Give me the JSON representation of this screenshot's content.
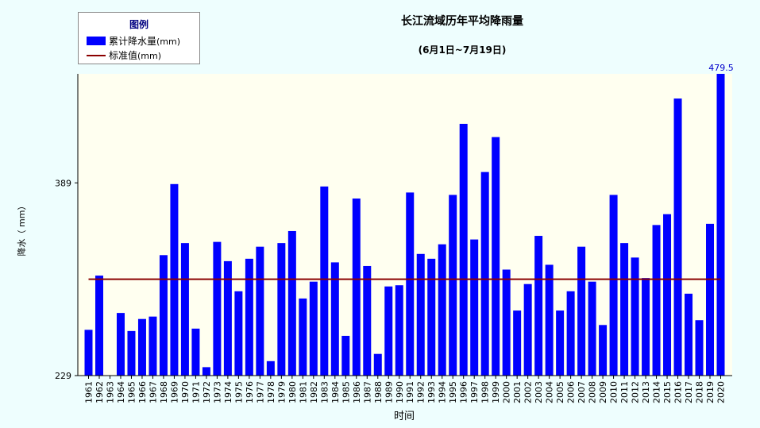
{
  "chart_data": {
    "type": "bar",
    "title": "长江流域历年平均降雨量",
    "subtitle": "(6月1日~7月19日)",
    "xlabel": "时间",
    "ylabel": "降水（ mm）",
    "ylim": [
      229,
      479.5
    ],
    "yticks": [
      229,
      389
    ],
    "max_label": "479.5",
    "categories": [
      "1961",
      "1962",
      "1963",
      "1964",
      "1965",
      "1966",
      "1967",
      "1968",
      "1969",
      "1970",
      "1971",
      "1972",
      "1973",
      "1974",
      "1975",
      "1976",
      "1977",
      "1978",
      "1979",
      "1980",
      "1981",
      "1982",
      "1983",
      "1984",
      "1985",
      "1986",
      "1987",
      "1988",
      "1989",
      "1990",
      "1991",
      "1992",
      "1993",
      "1994",
      "1995",
      "1996",
      "1997",
      "1998",
      "1999",
      "2000",
      "2001",
      "2002",
      "2003",
      "2004",
      "2005",
      "2006",
      "2007",
      "2008",
      "2009",
      "2010",
      "2011",
      "2012",
      "2013",
      "2014",
      "2015",
      "2016",
      "2017",
      "2018",
      "2019",
      "2020"
    ],
    "series": [
      {
        "name": "累计降水量(mm)",
        "values": [
          267,
          312,
          229,
          281,
          266,
          276,
          278,
          329,
          388,
          339,
          268,
          236,
          340,
          324,
          299,
          326,
          336,
          241,
          339,
          349,
          293,
          307,
          386,
          323,
          262,
          376,
          320,
          247,
          303,
          304,
          381,
          330,
          326,
          338,
          379,
          438,
          342,
          398,
          427,
          317,
          283,
          305,
          345,
          321,
          283,
          299,
          336,
          307,
          271,
          379,
          339,
          327,
          310,
          354,
          363,
          459,
          297,
          275,
          355,
          479.5
        ]
      }
    ],
    "reference_line": {
      "name": "标准值(mm)",
      "value": 309
    },
    "legend": {
      "title": "图例",
      "position": "top-left",
      "bar_label": "累计降水量",
      "line_label": "标准值",
      "unit": "(mm)"
    },
    "colors": {
      "bar": "#0000ff",
      "reference": "#8b0000",
      "plot_bg": "#fffff0",
      "page_bg": "#eefefe",
      "legend_title": "#000080",
      "max_label": "#0000cc"
    },
    "grid": false
  }
}
